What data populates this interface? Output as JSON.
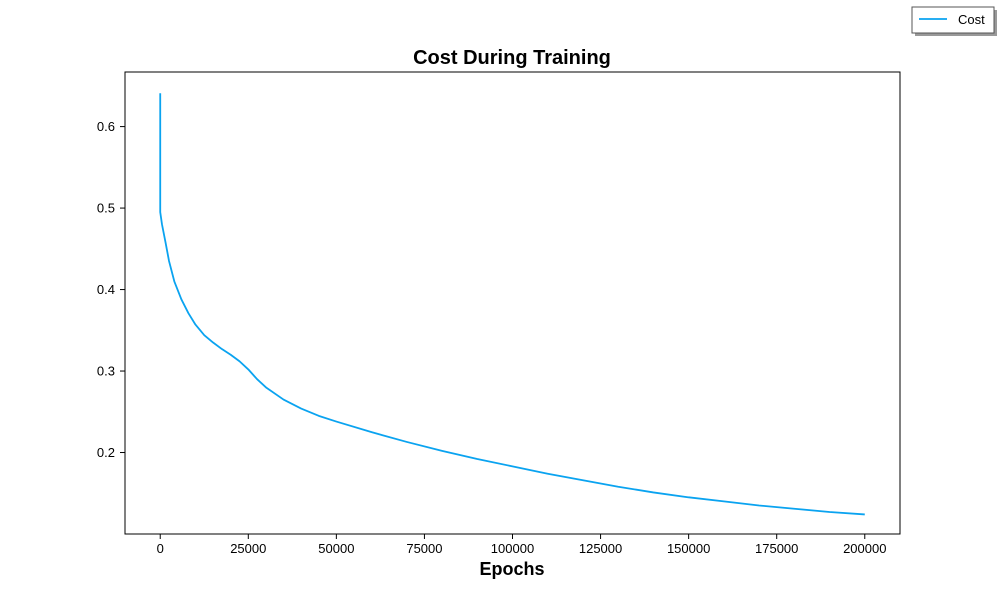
{
  "chart_data": {
    "type": "line",
    "title": "Cost During Training",
    "xlabel": "Epochs",
    "ylabel": "",
    "xlim": [
      -10000,
      210000
    ],
    "ylim": [
      0.1,
      0.667
    ],
    "xticks": [
      0,
      25000,
      50000,
      75000,
      100000,
      125000,
      150000,
      175000,
      200000
    ],
    "xtick_labels": [
      "0",
      "25000",
      "50000",
      "75000",
      "100000",
      "125000",
      "150000",
      "175000",
      "200000"
    ],
    "yticks": [
      0.2,
      0.3,
      0.4,
      0.5,
      0.6
    ],
    "ytick_labels": [
      "0.2",
      "0.3",
      "0.4",
      "0.5",
      "0.6"
    ],
    "grid": false,
    "legend_position": "top-right",
    "colors": {
      "line": "#0aa3f0"
    },
    "series": [
      {
        "name": "Cost",
        "x": [
          0,
          1,
          500,
          1500,
          2500,
          4000,
          6000,
          8000,
          10000,
          12500,
          15000,
          17500,
          20000,
          22500,
          25000,
          27500,
          30000,
          35000,
          40000,
          45000,
          50000,
          60000,
          70000,
          80000,
          90000,
          100000,
          110000,
          120000,
          130000,
          140000,
          150000,
          160000,
          170000,
          180000,
          190000,
          200000
        ],
        "y": [
          0.641,
          0.495,
          0.48,
          0.458,
          0.435,
          0.41,
          0.388,
          0.371,
          0.357,
          0.344,
          0.335,
          0.327,
          0.32,
          0.312,
          0.302,
          0.29,
          0.28,
          0.265,
          0.254,
          0.245,
          0.238,
          0.225,
          0.213,
          0.202,
          0.192,
          0.183,
          0.174,
          0.166,
          0.158,
          0.151,
          0.145,
          0.14,
          0.135,
          0.131,
          0.127,
          0.124
        ]
      }
    ]
  }
}
